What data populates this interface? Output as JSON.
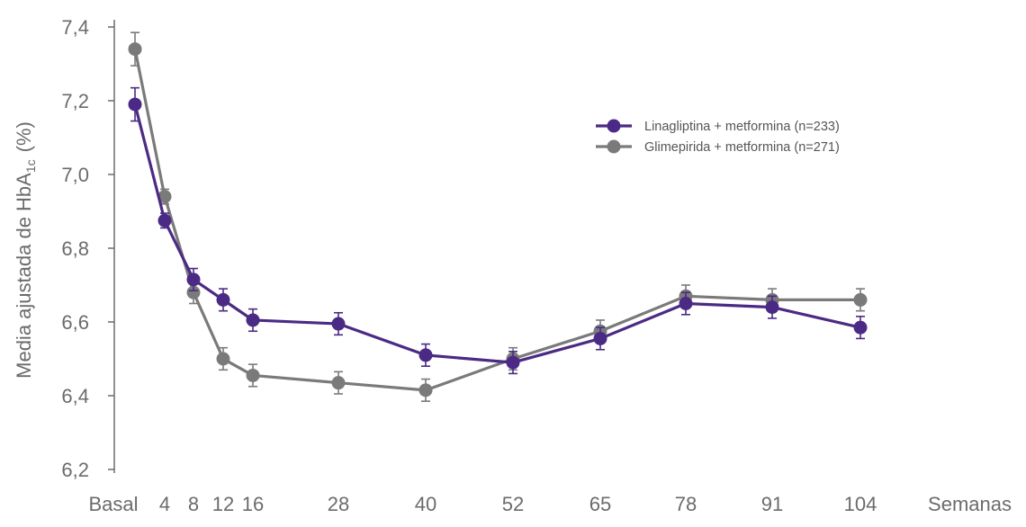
{
  "chart_data": {
    "type": "line",
    "ylabel_main": "Media ajustada de HbA",
    "ylabel_sub": "1c",
    "ylabel_unit": "(%)",
    "xlabel": "Semanas",
    "ylim": [
      6.2,
      7.4
    ],
    "yticks": [
      6.2,
      6.4,
      6.6,
      6.8,
      7.0,
      7.2,
      7.4
    ],
    "ytick_labels": [
      "6,2",
      "6,4",
      "6,6",
      "6,8",
      "7,0",
      "7,2",
      "7,4"
    ],
    "x": [
      0,
      4,
      8,
      12,
      16,
      28,
      40,
      52,
      65,
      78,
      91,
      104
    ],
    "xtick_labels": [
      "Basal",
      "4",
      "8",
      "12",
      "16",
      "28",
      "40",
      "52",
      "65",
      "78",
      "91",
      "104"
    ],
    "series": [
      {
        "name": "Linagliptina + metformina (n=233)",
        "color": "#4b2a85",
        "values": [
          7.19,
          6.875,
          6.715,
          6.66,
          6.605,
          6.595,
          6.51,
          6.49,
          6.555,
          6.65,
          6.64,
          6.585
        ],
        "err": [
          0.045,
          0.02,
          0.03,
          0.03,
          0.03,
          0.03,
          0.03,
          0.03,
          0.03,
          0.03,
          0.03,
          0.03
        ]
      },
      {
        "name": "Glimepirida + metformina (n=271)",
        "color": "#7a7a7a",
        "values": [
          7.34,
          6.94,
          6.68,
          6.5,
          6.455,
          6.435,
          6.415,
          6.5,
          6.575,
          6.67,
          6.66,
          6.66
        ],
        "err": [
          0.045,
          0.02,
          0.03,
          0.03,
          0.03,
          0.03,
          0.03,
          0.03,
          0.03,
          0.03,
          0.03,
          0.03
        ]
      }
    ],
    "legend_position": "top-right",
    "grid": false
  }
}
